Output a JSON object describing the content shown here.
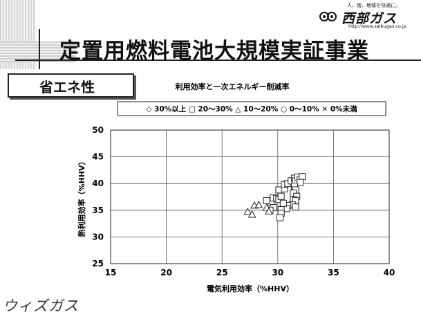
{
  "slide": {
    "title": "定置用燃料電池大規模実証事業",
    "section": "省エネ性",
    "footer_brand": "ウィズガス"
  },
  "logo": {
    "tagline": "人、街、地球を快適に。",
    "name": "西部ガス",
    "url": "http://www.saibugas.co.jp",
    "icon": "saibugas-logo-mark"
  },
  "chart_data": {
    "type": "scatter",
    "title": "利用効率と一次エネルギー削減率",
    "xlabel": "電気利用効率（%HHV）",
    "ylabel": "熱利用効率（%HHV）",
    "xlim": [
      15,
      40
    ],
    "ylim": [
      25,
      50
    ],
    "xticks": [
      "15",
      "20",
      "25",
      "30",
      "35",
      "40"
    ],
    "yticks": [
      "25",
      "30",
      "35",
      "40",
      "45",
      "50"
    ],
    "grid": true,
    "legend_position": "top",
    "legend_text": "◇ 30%以上 □ 20～30% △ 10～20% ○ 0～10% ✕ 0%未満",
    "series": [
      {
        "name": "30%以上",
        "marker": "diamond",
        "points": []
      },
      {
        "name": "20～30%",
        "marker": "square",
        "points": [
          [
            29.4,
            36.4
          ],
          [
            29.6,
            37.3
          ],
          [
            29.9,
            37.2
          ],
          [
            30.1,
            37.0
          ],
          [
            30.3,
            37.6
          ],
          [
            30.1,
            38.8
          ],
          [
            30.6,
            39.0
          ],
          [
            30.6,
            39.8
          ],
          [
            30.9,
            40.0
          ],
          [
            31.2,
            40.5
          ],
          [
            31.5,
            41.0
          ],
          [
            31.6,
            40.5
          ],
          [
            31.8,
            41.2
          ],
          [
            32.0,
            40.7
          ],
          [
            32.2,
            41.3
          ],
          [
            32.0,
            40.2
          ],
          [
            31.5,
            39.5
          ],
          [
            31.6,
            38.8
          ],
          [
            31.4,
            38.2
          ],
          [
            31.7,
            37.6
          ],
          [
            31.4,
            37.0
          ],
          [
            31.6,
            36.8
          ],
          [
            31.3,
            36.0
          ],
          [
            31.6,
            35.6
          ],
          [
            30.9,
            35.9
          ],
          [
            30.8,
            35.3
          ],
          [
            30.5,
            36.3
          ],
          [
            30.3,
            35.1
          ],
          [
            30.3,
            34.4
          ],
          [
            30.2,
            33.6
          ],
          [
            29.6,
            35.5
          ],
          [
            29.0,
            36.8
          ],
          [
            29.3,
            35.0
          ]
        ]
      },
      {
        "name": "10～20%",
        "marker": "triangle",
        "points": [
          [
            27.3,
            34.7
          ],
          [
            27.7,
            34.2
          ],
          [
            27.9,
            35.9
          ],
          [
            28.3,
            36.0
          ],
          [
            29.0,
            35.5
          ],
          [
            29.2,
            34.8
          ]
        ]
      },
      {
        "name": "0～10%",
        "marker": "circle",
        "points": []
      },
      {
        "name": "0%未満",
        "marker": "asterisk",
        "points": []
      }
    ]
  }
}
